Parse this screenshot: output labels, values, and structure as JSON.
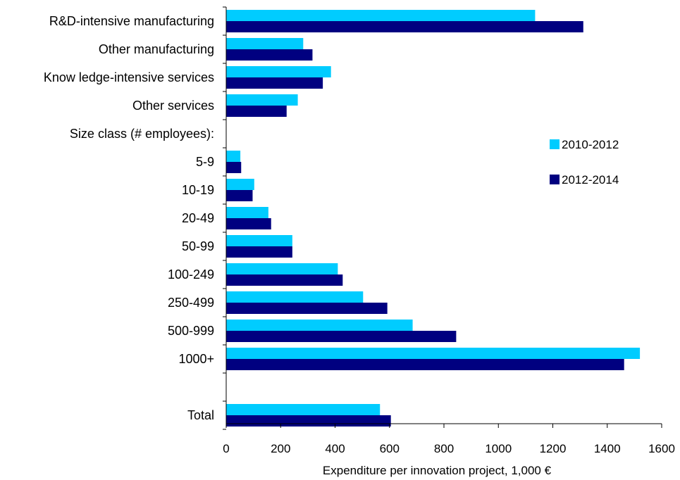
{
  "chart_data": {
    "type": "bar",
    "orientation": "horizontal",
    "categories": [
      "R&D-intensive manufacturing",
      "Other manufacturing",
      "Know ledge-intensive services",
      "Other services",
      "Size class (# employees):",
      "5-9",
      "10-19",
      "20-49",
      "50-99",
      "100-249",
      "250-499",
      "500-999",
      "1000+",
      "",
      "Total"
    ],
    "series": [
      {
        "name": "2010-2012",
        "color": "#00CCFF",
        "values": [
          1135,
          283,
          385,
          263,
          null,
          52,
          103,
          155,
          243,
          410,
          503,
          685,
          1520,
          null,
          565
        ]
      },
      {
        "name": "2012-2014",
        "color": "#000080",
        "values": [
          1312,
          317,
          355,
          222,
          null,
          55,
          97,
          165,
          243,
          428,
          592,
          845,
          1462,
          null,
          605
        ]
      }
    ],
    "xlabel": "Expenditure per innovation project, 1,000 €",
    "ylabel": "",
    "xlim": [
      0,
      1600
    ],
    "xticks": [
      "0",
      "200",
      "400",
      "600",
      "800",
      "1000",
      "1200",
      "1400",
      "1600"
    ],
    "grid": false,
    "legend": "right"
  }
}
